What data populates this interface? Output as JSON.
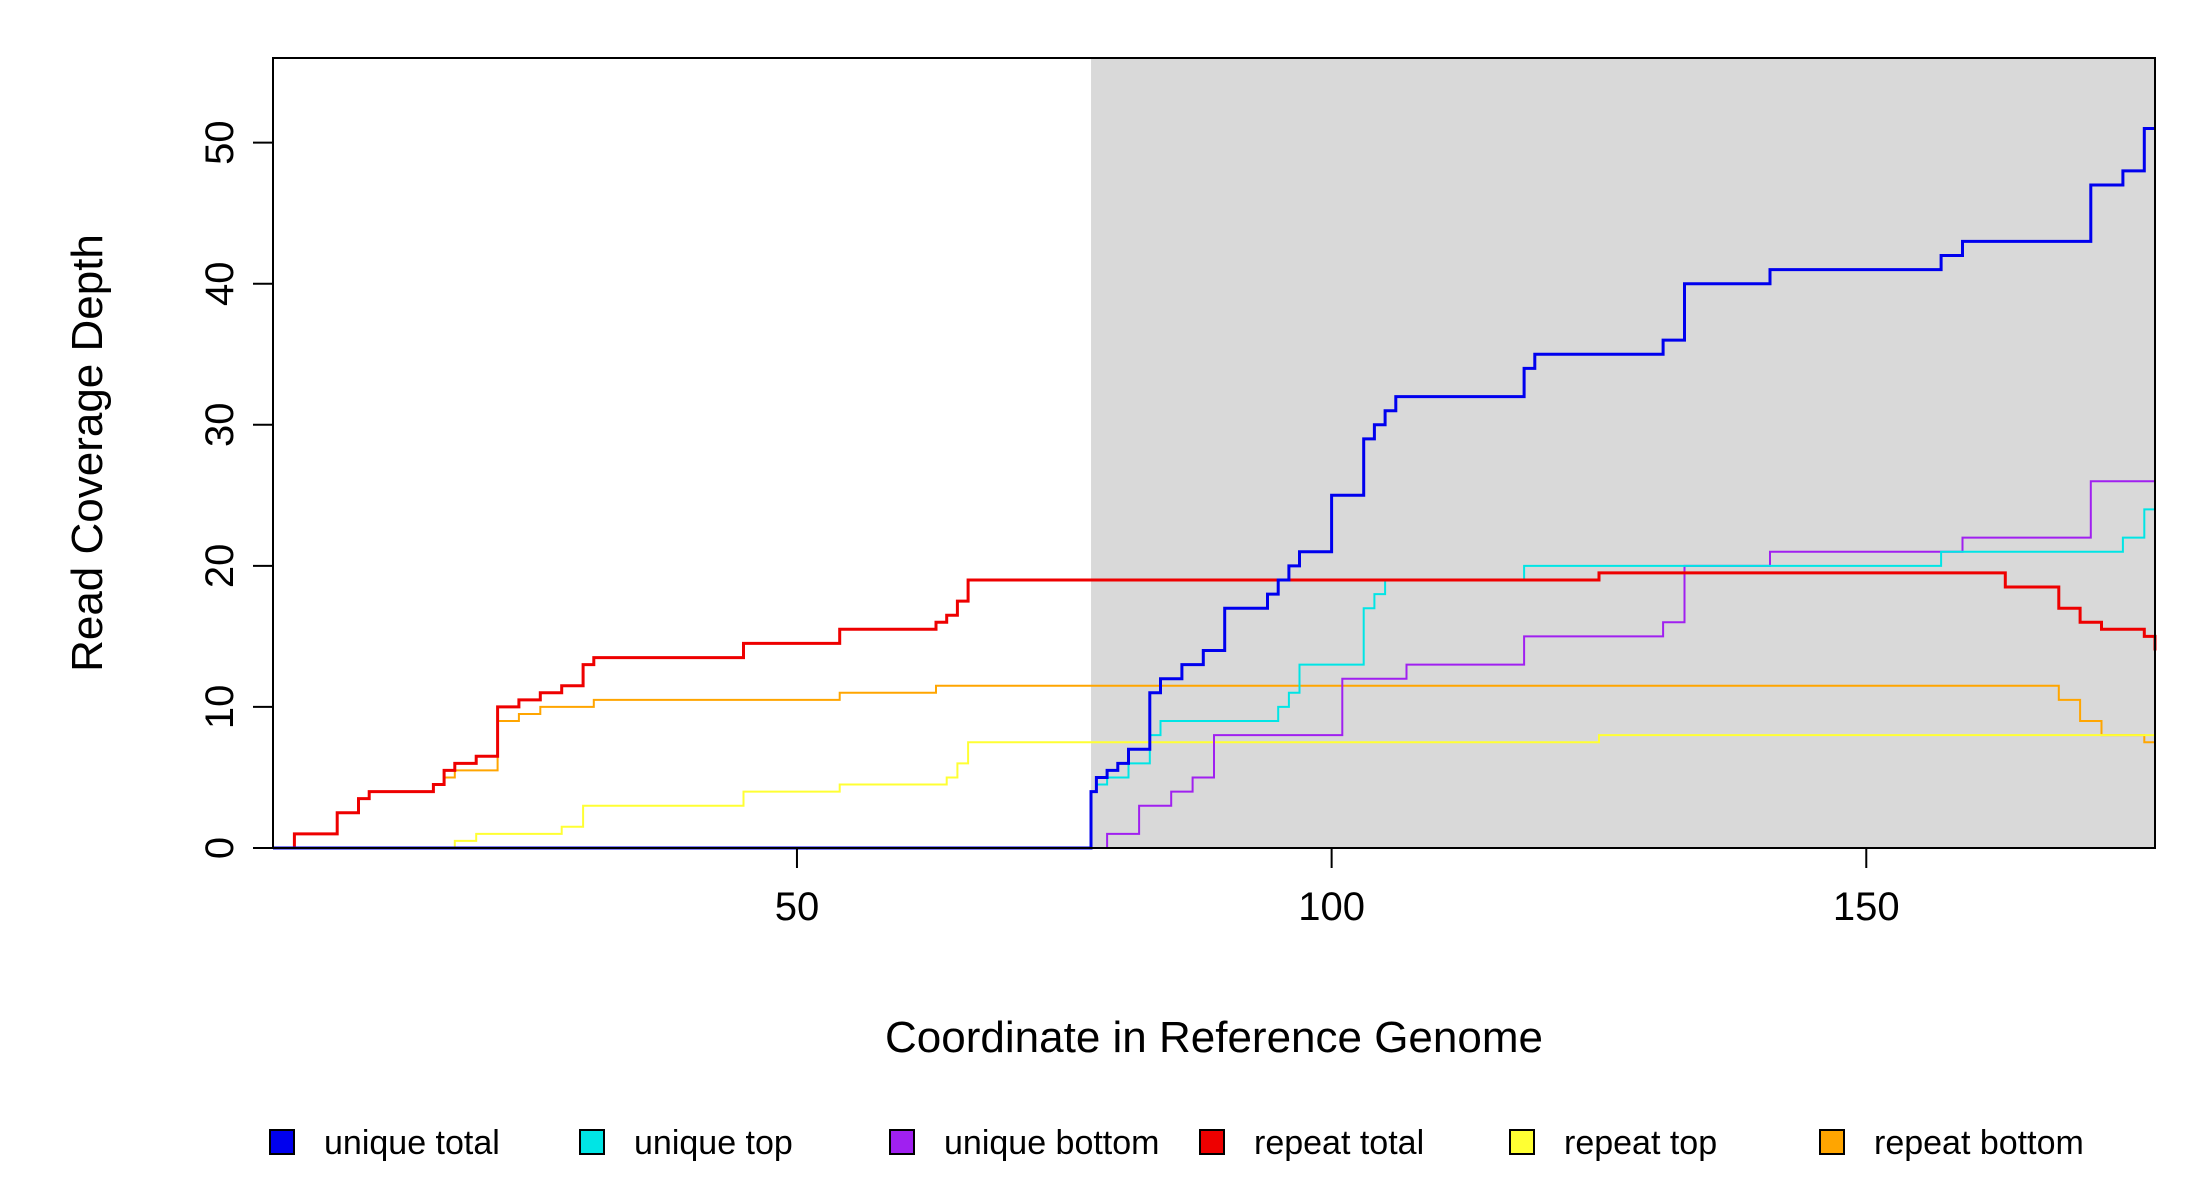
{
  "chart_data": {
    "type": "line",
    "title": "",
    "xlabel": "Coordinate in Reference Genome",
    "ylabel": "Read Coverage Depth",
    "xlim": [
      1,
      177
    ],
    "ylim": [
      0,
      56
    ],
    "x_ticks": [
      "50",
      "100",
      "150"
    ],
    "y_ticks": [
      "0",
      "10",
      "20",
      "30",
      "40",
      "50"
    ],
    "grid": false,
    "legend_position": "bottom",
    "shaded_region": {
      "x_start": 77.5,
      "x_end": 177,
      "color": "#d9d9d9"
    },
    "series": [
      {
        "name": "unique total",
        "color": "#0000ee",
        "stroke": 3,
        "x": [
          1,
          77.5,
          78,
          79,
          80,
          81,
          83,
          84,
          86,
          88,
          90,
          94,
          95,
          96,
          97,
          100,
          103,
          104,
          105,
          106,
          112,
          118,
          119,
          123,
          129,
          131,
          133,
          141,
          157,
          159,
          171,
          174,
          176,
          177
        ],
        "y": [
          0,
          4,
          5,
          5.5,
          6,
          7,
          11,
          12,
          13,
          14,
          17,
          18,
          19,
          20,
          21,
          25,
          29,
          30,
          31,
          32,
          32,
          34,
          35,
          35,
          35,
          36,
          40,
          41,
          42,
          43,
          47,
          48,
          51,
          51
        ]
      },
      {
        "name": "unique top",
        "color": "#00e5e5",
        "stroke": 2,
        "x": [
          1,
          77.5,
          78,
          79,
          81,
          83,
          84,
          88,
          95,
          96,
          97,
          103,
          104,
          105,
          107,
          118,
          133,
          141,
          157,
          163,
          174,
          176,
          177
        ],
        "y": [
          0,
          4,
          4.5,
          5,
          6,
          8,
          9,
          9,
          10,
          11,
          13,
          17,
          18,
          19,
          19,
          20,
          20,
          20,
          21,
          21,
          22,
          24,
          24
        ],
        "note_x_hidden_by_overlap": ""
      },
      {
        "name": "unique bottom",
        "color": "#a020f0",
        "stroke": 2,
        "x": [
          1,
          79,
          82,
          85,
          87,
          89,
          91,
          101,
          104,
          107,
          118,
          131,
          133,
          141,
          159,
          171,
          177
        ],
        "y": [
          0,
          1,
          3,
          4,
          5,
          8,
          8,
          12,
          12,
          13,
          15,
          16,
          20,
          21,
          22,
          26,
          26
        ]
      },
      {
        "name": "repeat total",
        "color": "#ee0000",
        "stroke": 3,
        "x": [
          1,
          3,
          7,
          9,
          10,
          16,
          17,
          18,
          20,
          22,
          24,
          26,
          28,
          30,
          31,
          45,
          54,
          63,
          64,
          65,
          66,
          107,
          125,
          163,
          168,
          170,
          172,
          176,
          177
        ],
        "y": [
          0,
          1,
          2.5,
          3.5,
          4,
          4.5,
          5.5,
          6,
          6.5,
          10,
          10.5,
          11,
          11.5,
          13,
          13.5,
          14.5,
          15.5,
          16,
          16.5,
          17.5,
          19,
          19,
          19.5,
          18.5,
          17,
          16,
          15.5,
          15,
          14
        ]
      },
      {
        "name": "repeat top",
        "color": "#ffff33",
        "stroke": 2,
        "x": [
          1,
          18,
          20,
          28,
          30,
          45,
          54,
          64,
          65,
          66,
          125,
          177
        ],
        "y": [
          0,
          0.5,
          1,
          1.5,
          3,
          4,
          4.5,
          5,
          6,
          7.5,
          8,
          8
        ]
      },
      {
        "name": "repeat bottom",
        "color": "#ffa500",
        "stroke": 2,
        "x": [
          1,
          3,
          7,
          9,
          10,
          16,
          17,
          18,
          22,
          24,
          26,
          31,
          54,
          63,
          163,
          168,
          170,
          172,
          176,
          177
        ],
        "y": [
          0,
          1,
          2.5,
          3.5,
          4,
          4.5,
          5,
          5.5,
          9,
          9.5,
          10,
          10.5,
          11,
          11.5,
          11.5,
          10.5,
          9,
          8,
          7.5,
          7
        ]
      }
    ]
  }
}
